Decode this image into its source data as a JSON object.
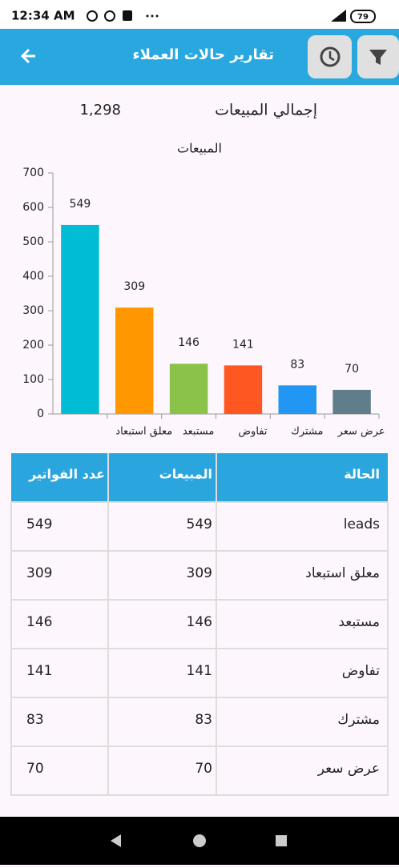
{
  "status_bar": {
    "time": "12:34 AM",
    "battery": "79"
  },
  "app_bar": {
    "title": "تقارير حالات العملاء"
  },
  "summary": {
    "label": "إجمالي المبيعات",
    "value": "1,298"
  },
  "chart_data": {
    "type": "bar",
    "title": "المبيعات",
    "categories": [
      null,
      "معلق استبعاد",
      "مستبعد",
      "تفاوض",
      "مشترك",
      "عرض سعر"
    ],
    "values": [
      549,
      309,
      146,
      141,
      83,
      70
    ],
    "colors": [
      "#00bcd4",
      "#ff9800",
      "#8bc34a",
      "#ff5722",
      "#2196f3",
      "#607d8b"
    ],
    "ylim": [
      0,
      700
    ],
    "yticks": [
      0,
      100,
      200,
      300,
      400,
      500,
      600,
      700
    ]
  },
  "table": {
    "header": [
      "الحالة",
      "المبيعات",
      "عدد الفواتير"
    ],
    "rows": [
      [
        "leads",
        549,
        549
      ],
      [
        "معلق استبعاد",
        309,
        309
      ],
      [
        "مستبعد",
        146,
        146
      ],
      [
        "تفاوض",
        141,
        141
      ],
      [
        "مشترك",
        83,
        83
      ],
      [
        "عرض سعر",
        70,
        70
      ]
    ]
  }
}
